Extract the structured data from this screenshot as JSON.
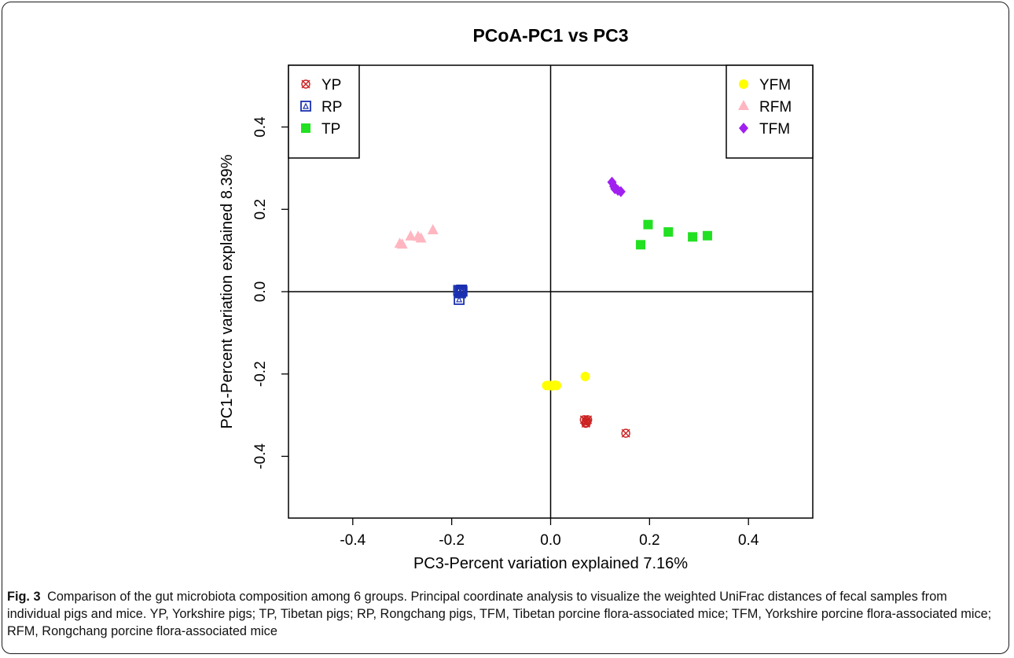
{
  "chart_data": {
    "type": "scatter",
    "title": "PCoA-PC1 vs PC3",
    "xlabel": "PC3-Percent variation explained 7.16%",
    "ylabel": "PC1-Percent variation explained 8.39%",
    "xlim": [
      -0.53,
      0.53
    ],
    "ylim": [
      -0.55,
      0.55
    ],
    "x_ticks": [
      -0.4,
      -0.2,
      0.0,
      0.2,
      0.4
    ],
    "x_tick_labels": [
      "-0.4",
      "-0.2",
      "0.0",
      "0.2",
      "0.4"
    ],
    "y_ticks": [
      -0.4,
      -0.2,
      0.0,
      0.2,
      0.4
    ],
    "y_tick_labels": [
      "-0.4",
      "-0.2",
      "0.0",
      "0.2",
      "0.4"
    ],
    "reference_lines": {
      "x": 0,
      "y": 0
    },
    "grid": false,
    "legends": [
      {
        "position": "top-left",
        "entries": [
          "YP",
          "RP",
          "TP"
        ]
      },
      {
        "position": "top-right",
        "entries": [
          "YFM",
          "RFM",
          "TFM"
        ]
      }
    ],
    "series": [
      {
        "name": "YP",
        "marker": "circle-x",
        "color": "#cc2222",
        "points": [
          [
            0.068,
            -0.311
          ],
          [
            0.072,
            -0.318
          ],
          [
            0.075,
            -0.311
          ],
          [
            0.071,
            -0.32
          ],
          [
            0.073,
            -0.314
          ],
          [
            0.152,
            -0.344
          ]
        ]
      },
      {
        "name": "RP",
        "marker": "square-open",
        "color": "#1a2fb0",
        "points": [
          [
            -0.186,
            0.003
          ],
          [
            -0.183,
            0.0
          ],
          [
            -0.18,
            0.004
          ],
          [
            -0.182,
            -0.003
          ],
          [
            -0.185,
            -0.019
          ],
          [
            -0.179,
            0.001
          ]
        ]
      },
      {
        "name": "TP",
        "marker": "square",
        "color": "#22e022",
        "points": [
          [
            0.197,
            0.163
          ],
          [
            0.238,
            0.145
          ],
          [
            0.287,
            0.133
          ],
          [
            0.317,
            0.136
          ],
          [
            0.182,
            0.114
          ]
        ]
      },
      {
        "name": "YFM",
        "marker": "circle",
        "color": "#ffff00",
        "points": [
          [
            -0.008,
            -0.228
          ],
          [
            -0.004,
            -0.228
          ],
          [
            0.0,
            -0.228
          ],
          [
            0.004,
            -0.229
          ],
          [
            0.008,
            -0.227
          ],
          [
            0.012,
            -0.228
          ],
          [
            0.07,
            -0.206
          ]
        ]
      },
      {
        "name": "RFM",
        "marker": "triangle",
        "color": "#ffb6c1",
        "points": [
          [
            -0.305,
            0.116
          ],
          [
            -0.3,
            0.114
          ],
          [
            -0.283,
            0.134
          ],
          [
            -0.268,
            0.133
          ],
          [
            -0.262,
            0.129
          ],
          [
            -0.238,
            0.149
          ]
        ]
      },
      {
        "name": "TFM",
        "marker": "diamond",
        "color": "#a020f0",
        "points": [
          [
            0.124,
            0.266
          ],
          [
            0.128,
            0.256
          ],
          [
            0.13,
            0.25
          ],
          [
            0.136,
            0.246
          ],
          [
            0.142,
            0.243
          ]
        ]
      }
    ]
  },
  "caption": {
    "label": "Fig. 3",
    "text": "Comparison of the gut microbiota composition among 6 groups. Principal coordinate analysis to visualize the weighted UniFrac distances of fecal samples from individual pigs and mice. YP, Yorkshire pigs; TP, Tibetan pigs; RP, Rongchang pigs, TFM, Tibetan porcine flora-associated mice; TFM, Yorkshire porcine flora-associated mice; RFM, Rongchang porcine flora-associated mice"
  }
}
